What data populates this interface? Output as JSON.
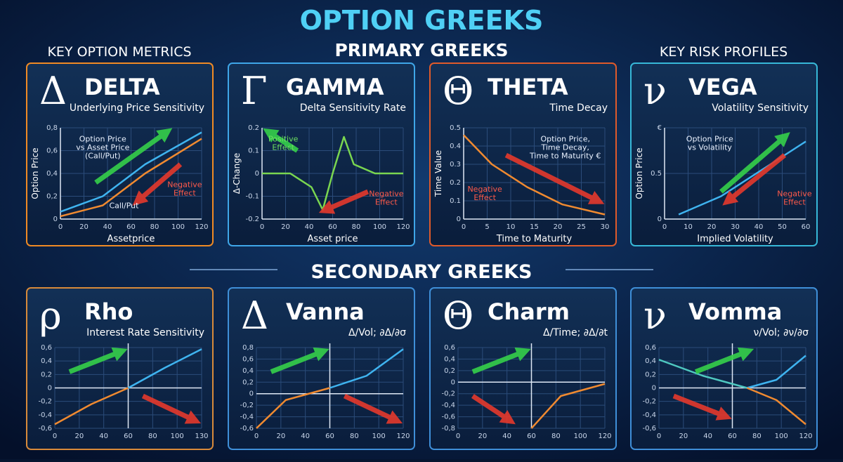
{
  "title": "OPTION GREEKS",
  "sections": {
    "primary": "PRIMARY GREEKS",
    "secondary": "SECONDARY GREEKS",
    "left": "KEY OPTION METRICS",
    "right": "KEY RISK PROFILES"
  },
  "cards": [
    {
      "symbol": "Δ",
      "name": "DELTA",
      "subtitle": "Underlying Price Sensitivity",
      "xlabel": "Assetprice",
      "ylabel": "Option Price",
      "xticks": [
        "0",
        "20",
        "40",
        "60",
        "80",
        "100",
        "120"
      ],
      "yticks": [
        "0",
        "0,2",
        "0,4",
        "0,6",
        "0,8"
      ],
      "annotations": [
        [
          "Option Price",
          "vs Asset Price",
          "(Call/Put)"
        ],
        [
          "Call/Put"
        ],
        [
          "Negative",
          "Effect"
        ]
      ]
    },
    {
      "symbol": "Γ",
      "name": "GAMMA",
      "subtitle": "Delta Sensitivity Rate",
      "xlabel": "Asset price",
      "ylabel": "Δ-Change",
      "xticks": [
        "0",
        "20",
        "40",
        "60",
        "80",
        "100",
        "120"
      ],
      "yticks": [
        "-0.2",
        "-0.1",
        "0",
        "0.1",
        "0.2"
      ],
      "annotations": [
        [
          "Positive",
          "Effect"
        ],
        [
          "Negative",
          "Effect"
        ]
      ]
    },
    {
      "symbol": "Θ",
      "name": "THETA",
      "subtitle": "Time Decay",
      "xlabel": "Time to Maturity",
      "ylabel": "Time Value",
      "xticks": [
        "0",
        "5",
        "10",
        "15",
        "20",
        "25",
        "30"
      ],
      "yticks": [
        "0",
        "0.1",
        "0.2",
        "0.3",
        "0.4",
        "0.5"
      ],
      "annotations": [
        [
          "Option Price,",
          "Time Decay,",
          "Time to Maturity €"
        ],
        [
          "Negative",
          "Effect"
        ]
      ]
    },
    {
      "symbol": "ν",
      "name": "VEGA",
      "subtitle": "Volatility Sensitivity",
      "xlabel": "Implied Volatility",
      "ylabel": "Option Price",
      "xticks": [
        "0",
        "10",
        "20",
        "30",
        "40",
        "50",
        "60"
      ],
      "yticks": [
        "0",
        "0.5",
        "€"
      ],
      "annotations": [
        [
          "Option Price",
          "vs Volatility"
        ],
        [
          "Negative",
          "Effect"
        ]
      ]
    },
    {
      "symbol": "ρ",
      "name": "Rho",
      "subtitle": "Interest Rate Sensitivity",
      "xticks": [
        "0",
        "20",
        "40",
        "60",
        "80",
        "100",
        "130"
      ],
      "yticks": [
        "-0,6",
        "-0,4",
        "-0,2",
        "0",
        "0,2",
        "0,4",
        "0,6"
      ]
    },
    {
      "symbol": "Δ",
      "name": "Vanna",
      "subtitle": "Δ/Vol; ∂Δ/∂σ",
      "xticks": [
        "0",
        "20",
        "40",
        "60",
        "80",
        "100",
        "120"
      ],
      "yticks": [
        "-0,6",
        "-0,4",
        "-0,2",
        "0",
        "0,2",
        "0,4",
        "0,6",
        "0,8"
      ]
    },
    {
      "symbol": "Θ",
      "name": "Charm",
      "subtitle": "Δ/Time; ∂Δ/∂t",
      "xticks": [
        "0",
        "20",
        "40",
        "60",
        "80",
        "100",
        "120"
      ],
      "yticks": [
        "-0,8",
        "-0,6",
        "-0,4",
        "-0,2",
        "0",
        "0,2",
        "0,4",
        "0,6"
      ]
    },
    {
      "symbol": "ν",
      "name": "Vomma",
      "subtitle": "ν/Vol; ∂ν/∂σ",
      "xticks": [
        "0",
        "20",
        "40",
        "60",
        "80",
        "100",
        "120"
      ],
      "yticks": [
        "-0,6",
        "-0,4",
        "-0,2",
        "0",
        "0,2",
        "0,4",
        "0,6"
      ]
    }
  ]
}
